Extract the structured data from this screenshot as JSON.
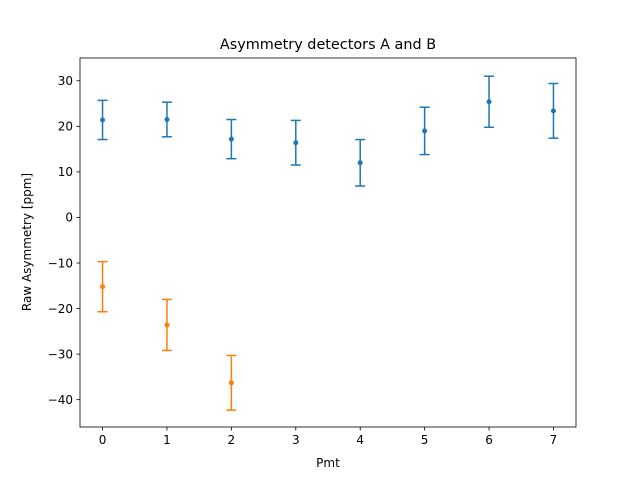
{
  "chart_data": {
    "type": "scatter",
    "title": "Asymmetry detectors A and B",
    "xlabel": "Pmt",
    "ylabel": "Raw Asymmetry [ppm]",
    "xlim": [
      -0.35,
      7.35
    ],
    "ylim": [
      -46,
      35
    ],
    "xticks": [
      0,
      1,
      2,
      3,
      4,
      5,
      6,
      7
    ],
    "xtick_labels": [
      "0",
      "1",
      "2",
      "3",
      "4",
      "5",
      "6",
      "7"
    ],
    "yticks": [
      -40,
      -30,
      -20,
      -10,
      0,
      10,
      20,
      30
    ],
    "ytick_labels": [
      "−40",
      "−30",
      "−20",
      "−10",
      "0",
      "10",
      "20",
      "30"
    ],
    "grid": false,
    "series": [
      {
        "color": "#1f77b4",
        "x": [
          0,
          1,
          2,
          3,
          4,
          5,
          6,
          7
        ],
        "y": [
          21.4,
          21.5,
          17.2,
          16.4,
          12.0,
          19.0,
          25.4,
          23.4
        ],
        "yerr": [
          4.3,
          3.8,
          4.3,
          4.9,
          5.1,
          5.2,
          5.6,
          6.0
        ]
      },
      {
        "color": "#ff7f0e",
        "x": [
          0,
          1,
          2
        ],
        "y": [
          -15.2,
          -23.6,
          -36.3
        ],
        "yerr": [
          5.5,
          5.6,
          6.0
        ]
      }
    ]
  }
}
